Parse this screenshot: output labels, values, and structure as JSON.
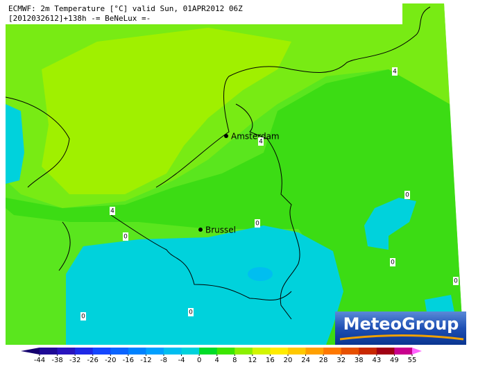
{
  "header": {
    "line1": "ECMWF: 2m Temperature [°C] valid Sun, 01APR2012 06Z",
    "line2": "[2012032612]+138h  -= BeNeLux =-"
  },
  "cities": [
    {
      "name": "Amsterdam"
    },
    {
      "name": "Brussel"
    }
  ],
  "contour_labels": [
    "4",
    "4",
    "4",
    "0",
    "0",
    "0",
    "0",
    "0",
    "0",
    "0"
  ],
  "logo": "MeteoGroup",
  "colorbar": {
    "ticks": [
      -44,
      -38,
      -32,
      -26,
      -20,
      -16,
      -12,
      -8,
      -4,
      0,
      4,
      8,
      12,
      16,
      20,
      24,
      28,
      32,
      38,
      43,
      49,
      55
    ],
    "colors": [
      "#14006e",
      "#1e0a96",
      "#2814be",
      "#1e28e6",
      "#1446ff",
      "#0a64ff",
      "#0082ff",
      "#00a0ff",
      "#00bef0",
      "#00d2dc",
      "#00dc28",
      "#3ce600",
      "#8cf000",
      "#d2f500",
      "#ffeb00",
      "#ffc800",
      "#ffa000",
      "#ff7800",
      "#e65000",
      "#c82800",
      "#a00014",
      "#c8008c",
      "#ff64ff"
    ]
  }
}
